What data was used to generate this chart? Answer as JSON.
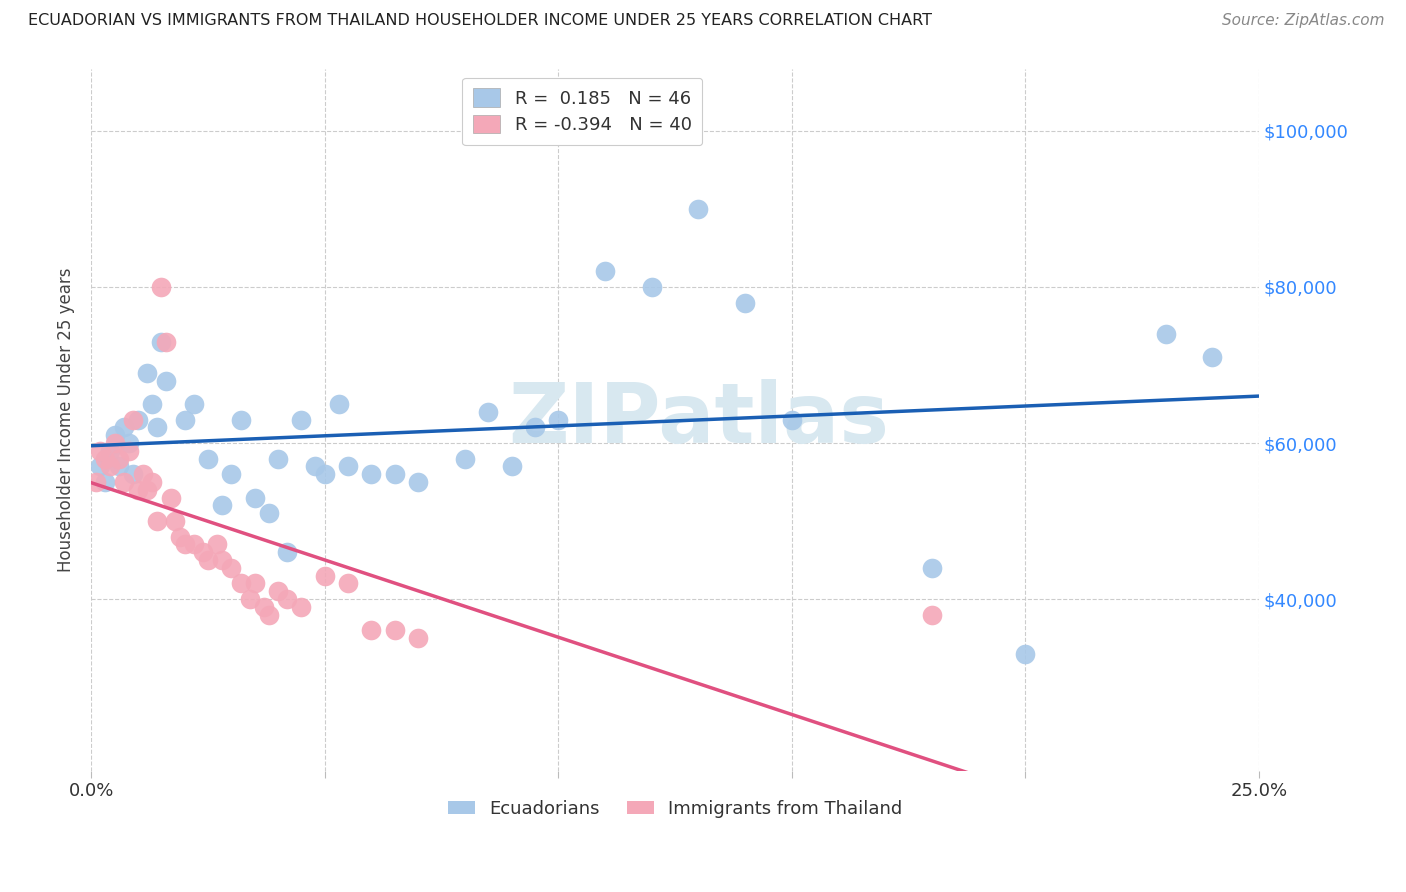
{
  "title": "ECUADORIAN VS IMMIGRANTS FROM THAILAND HOUSEHOLDER INCOME UNDER 25 YEARS CORRELATION CHART",
  "source": "Source: ZipAtlas.com",
  "ylabel": "Householder Income Under 25 years",
  "ytick_labels": [
    "$40,000",
    "$60,000",
    "$80,000",
    "$100,000"
  ],
  "ytick_values": [
    40000,
    60000,
    80000,
    100000
  ],
  "xmin": 0.0,
  "xmax": 0.25,
  "ymin": 18000,
  "ymax": 108000,
  "color_blue": "#a8c8e8",
  "color_pink": "#f4a8b8",
  "line_color_blue": "#1a5fb4",
  "line_color_pink": "#e05080",
  "watermark_color": "#d8e8f0",
  "blue_points": [
    [
      0.002,
      57000
    ],
    [
      0.003,
      55000
    ],
    [
      0.004,
      59000
    ],
    [
      0.005,
      61000
    ],
    [
      0.006,
      57000
    ],
    [
      0.007,
      62000
    ],
    [
      0.008,
      60000
    ],
    [
      0.009,
      56000
    ],
    [
      0.01,
      63000
    ],
    [
      0.012,
      69000
    ],
    [
      0.013,
      65000
    ],
    [
      0.014,
      62000
    ],
    [
      0.015,
      73000
    ],
    [
      0.016,
      68000
    ],
    [
      0.02,
      63000
    ],
    [
      0.022,
      65000
    ],
    [
      0.025,
      58000
    ],
    [
      0.028,
      52000
    ],
    [
      0.03,
      56000
    ],
    [
      0.032,
      63000
    ],
    [
      0.035,
      53000
    ],
    [
      0.038,
      51000
    ],
    [
      0.04,
      58000
    ],
    [
      0.042,
      46000
    ],
    [
      0.045,
      63000
    ],
    [
      0.048,
      57000
    ],
    [
      0.05,
      56000
    ],
    [
      0.053,
      65000
    ],
    [
      0.055,
      57000
    ],
    [
      0.06,
      56000
    ],
    [
      0.065,
      56000
    ],
    [
      0.07,
      55000
    ],
    [
      0.08,
      58000
    ],
    [
      0.085,
      64000
    ],
    [
      0.09,
      57000
    ],
    [
      0.095,
      62000
    ],
    [
      0.1,
      63000
    ],
    [
      0.11,
      82000
    ],
    [
      0.12,
      80000
    ],
    [
      0.13,
      90000
    ],
    [
      0.14,
      78000
    ],
    [
      0.15,
      63000
    ],
    [
      0.18,
      44000
    ],
    [
      0.2,
      33000
    ],
    [
      0.23,
      74000
    ],
    [
      0.24,
      71000
    ]
  ],
  "pink_points": [
    [
      0.001,
      55000
    ],
    [
      0.002,
      59000
    ],
    [
      0.003,
      58000
    ],
    [
      0.004,
      57000
    ],
    [
      0.005,
      60000
    ],
    [
      0.006,
      58000
    ],
    [
      0.007,
      55000
    ],
    [
      0.008,
      59000
    ],
    [
      0.009,
      63000
    ],
    [
      0.01,
      54000
    ],
    [
      0.011,
      56000
    ],
    [
      0.012,
      54000
    ],
    [
      0.013,
      55000
    ],
    [
      0.014,
      50000
    ],
    [
      0.015,
      80000
    ],
    [
      0.016,
      73000
    ],
    [
      0.017,
      53000
    ],
    [
      0.018,
      50000
    ],
    [
      0.019,
      48000
    ],
    [
      0.02,
      47000
    ],
    [
      0.022,
      47000
    ],
    [
      0.024,
      46000
    ],
    [
      0.025,
      45000
    ],
    [
      0.027,
      47000
    ],
    [
      0.028,
      45000
    ],
    [
      0.03,
      44000
    ],
    [
      0.032,
      42000
    ],
    [
      0.034,
      40000
    ],
    [
      0.035,
      42000
    ],
    [
      0.037,
      39000
    ],
    [
      0.038,
      38000
    ],
    [
      0.04,
      41000
    ],
    [
      0.042,
      40000
    ],
    [
      0.045,
      39000
    ],
    [
      0.05,
      43000
    ],
    [
      0.055,
      42000
    ],
    [
      0.06,
      36000
    ],
    [
      0.065,
      36000
    ],
    [
      0.07,
      35000
    ],
    [
      0.18,
      38000
    ]
  ],
  "legend_blue_label": "R =  0.185   N = 46",
  "legend_pink_label": "R = -0.394   N = 40",
  "bottom_legend_blue": "Ecuadorians",
  "bottom_legend_pink": "Immigrants from Thailand"
}
